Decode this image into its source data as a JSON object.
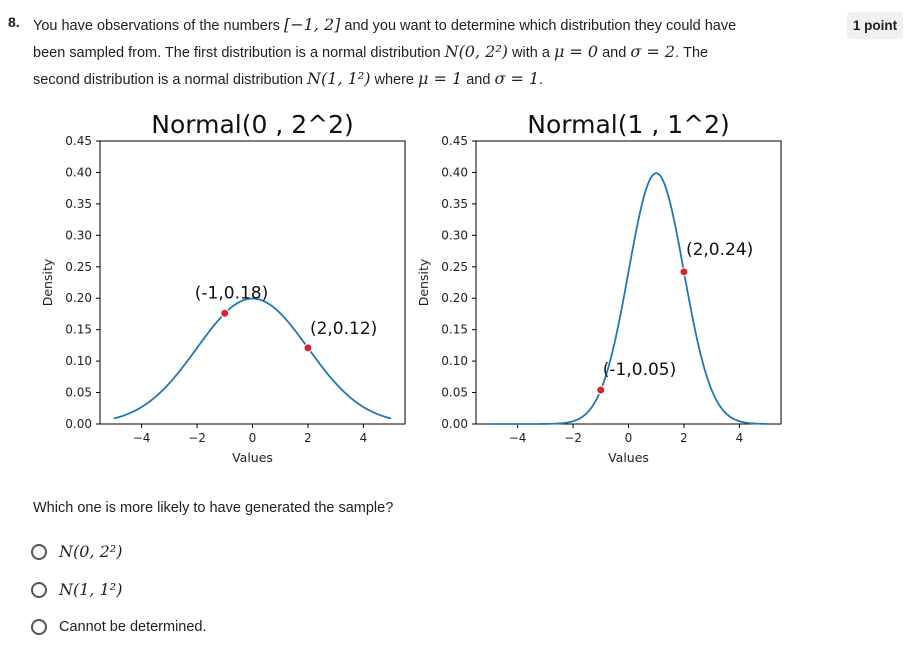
{
  "question": {
    "number": "8.",
    "points": "1 point",
    "line1_a": "You have observations of the numbers ",
    "line1_m": "[−1, 2]",
    "line1_b": " and you want to determine which distribution they could have",
    "line2_a": "been sampled from. The first distribution is a normal distribution ",
    "line2_m1": "N(0, 2²)",
    "line2_b": " with a ",
    "line2_m2": "μ = 0",
    "line2_c": " and ",
    "line2_m3": "σ = 2",
    "line2_d": ". The",
    "line3_a": "second distribution is a normal distribution ",
    "line3_m1": "N(1, 1²)",
    "line3_b": " where ",
    "line3_m2": "μ = 1",
    "line3_c": " and ",
    "line3_m3": "σ = 1",
    "line3_d": "."
  },
  "chart_data": [
    {
      "type": "line",
      "title": "Normal(0 , 2^2)",
      "xlabel": "Values",
      "ylabel": "Density",
      "xlim": [
        -5,
        5
      ],
      "ylim": [
        0,
        0.45
      ],
      "xticks": [
        -4,
        -2,
        0,
        2,
        4
      ],
      "xtick_labels": [
        "−4",
        "−2",
        "0",
        "2",
        "4"
      ],
      "yticks": [
        0,
        0.05,
        0.1,
        0.15,
        0.2,
        0.25,
        0.3,
        0.35,
        0.4,
        0.45
      ],
      "ytick_labels": [
        "0.00",
        "0.05",
        "0.10",
        "0.15",
        "0.20",
        "0.25",
        "0.30",
        "0.35",
        "0.40",
        "0.45"
      ],
      "mu": 0,
      "sigma": 2,
      "x_range": [
        -5,
        5
      ],
      "color": "#1f77b4",
      "points": [
        {
          "x": -1,
          "y": 0.18,
          "label": "(-1,0.18)"
        },
        {
          "x": 2,
          "y": 0.12,
          "label": "(2,0.12)"
        }
      ],
      "point_color": "#d62728"
    },
    {
      "type": "line",
      "title": "Normal(1 , 1^2)",
      "xlabel": "Values",
      "ylabel": "Density",
      "xlim": [
        -5,
        5
      ],
      "ylim": [
        0,
        0.45
      ],
      "xticks": [
        -4,
        -2,
        0,
        2,
        4
      ],
      "xtick_labels": [
        "−4",
        "−2",
        "0",
        "2",
        "4"
      ],
      "yticks": [
        0,
        0.05,
        0.1,
        0.15,
        0.2,
        0.25,
        0.3,
        0.35,
        0.4,
        0.45
      ],
      "ytick_labels": [
        "0.00",
        "0.05",
        "0.10",
        "0.15",
        "0.20",
        "0.25",
        "0.30",
        "0.35",
        "0.40",
        "0.45"
      ],
      "mu": 1,
      "sigma": 1,
      "x_range": [
        -5,
        5
      ],
      "color": "#1f77b4",
      "points": [
        {
          "x": -1,
          "y": 0.05,
          "label": "(-1,0.05)"
        },
        {
          "x": 2,
          "y": 0.24,
          "label": "(2,0.24)"
        }
      ],
      "point_color": "#d62728"
    }
  ],
  "prompt": "Which one is more likely to have generated the sample?",
  "options": [
    {
      "label": "N(0, 2²)"
    },
    {
      "label": "N(1, 1²)"
    },
    {
      "label": "Cannot be determined."
    }
  ]
}
